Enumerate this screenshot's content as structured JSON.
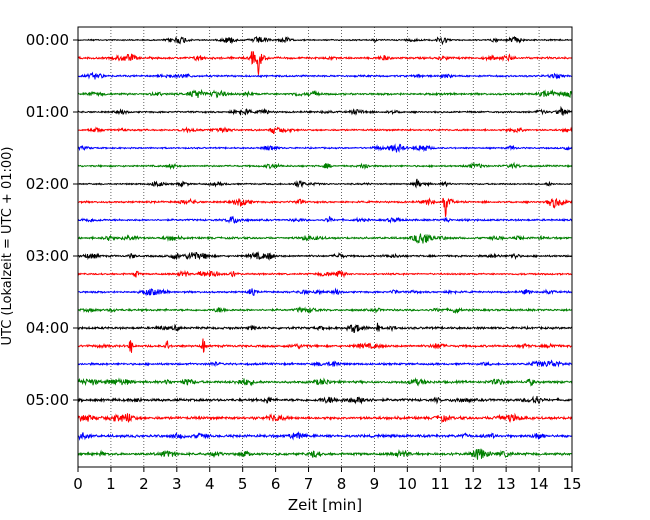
{
  "chart_data": {
    "type": "line",
    "title": "",
    "xlabel": "Zeit  [min]",
    "ylabel": "UTC (Lokalzeit = UTC + 01:00)",
    "xlim": [
      0,
      15
    ],
    "x_ticks": [
      0,
      1,
      2,
      3,
      4,
      5,
      6,
      7,
      8,
      9,
      10,
      11,
      12,
      13,
      14,
      15
    ],
    "y_tick_labels": [
      "00:00",
      "01:00",
      "02:00",
      "03:00",
      "04:00",
      "05:00"
    ],
    "grid": "vertical dotted lines at each minute",
    "trace_colors": [
      "#000000",
      "#ff0000",
      "#0000ff",
      "#008000"
    ],
    "rows_per_hour": 4,
    "trace_count": 24,
    "trace_noise_level": [
      0.35,
      0.55,
      0.5,
      0.55,
      0.45,
      0.45,
      0.4,
      0.45,
      0.4,
      0.5,
      0.5,
      0.55,
      0.5,
      0.45,
      0.5,
      0.55,
      0.6,
      0.6,
      0.55,
      0.65,
      0.7,
      0.75,
      0.7,
      0.65
    ],
    "events": [
      {
        "trace": 1,
        "minute": 5.3,
        "amplitude": 2.2
      },
      {
        "trace": 1,
        "minute": 5.5,
        "amplitude": 5.5
      },
      {
        "trace": 9,
        "minute": 11.15,
        "amplitude": 4.5
      },
      {
        "trace": 17,
        "minute": 1.6,
        "amplitude": 2.8
      },
      {
        "trace": 17,
        "minute": 2.7,
        "amplitude": 1.8
      },
      {
        "trace": 17,
        "minute": 3.8,
        "amplitude": 3.0
      },
      {
        "trace": 16,
        "minute": 9.1,
        "amplitude": 1.6
      },
      {
        "trace": 8,
        "minute": 10.3,
        "amplitude": 1.2
      },
      {
        "trace": 0,
        "minute": 9.0,
        "amplitude": 0.9
      }
    ]
  }
}
